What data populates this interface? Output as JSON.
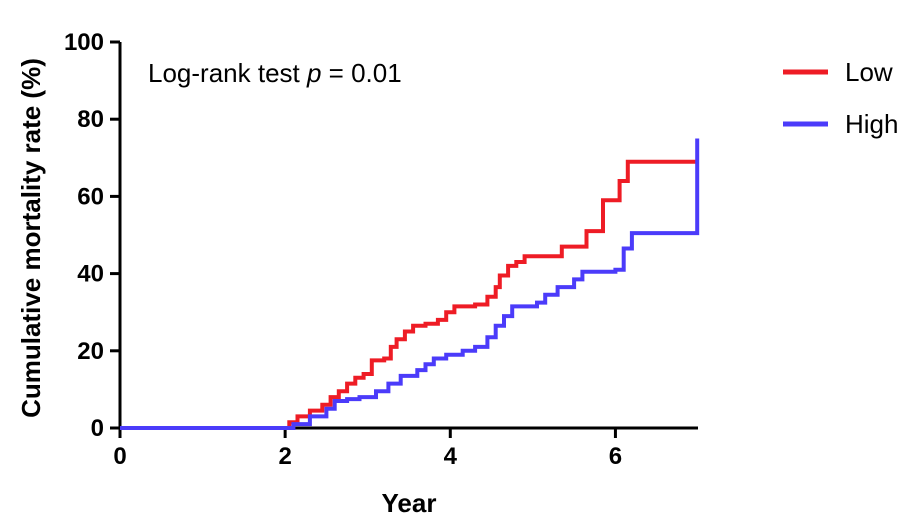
{
  "chart_data": {
    "type": "line",
    "title": "",
    "xlabel": "Year",
    "ylabel": "Cumulative mortality rate (%)",
    "xlim": [
      0,
      7
    ],
    "ylim": [
      0,
      100
    ],
    "xticks": [
      0,
      2,
      4,
      6
    ],
    "yticks": [
      0,
      20,
      40,
      60,
      80,
      100
    ],
    "grid": false,
    "legend_position": "top-right outside plot",
    "annotation": {
      "prefix": "Log-rank test ",
      "p_symbol": "p",
      "suffix": " = 0.01"
    },
    "series": [
      {
        "name": "Low",
        "color": "#ee1c25",
        "step": true,
        "points": [
          [
            0,
            0
          ],
          [
            2.0,
            0
          ],
          [
            2.05,
            1.5
          ],
          [
            2.15,
            3
          ],
          [
            2.3,
            4.5
          ],
          [
            2.45,
            6
          ],
          [
            2.55,
            8
          ],
          [
            2.65,
            9.5
          ],
          [
            2.75,
            11.5
          ],
          [
            2.85,
            13
          ],
          [
            2.95,
            14
          ],
          [
            3.05,
            17.5
          ],
          [
            3.2,
            18
          ],
          [
            3.28,
            21
          ],
          [
            3.35,
            23
          ],
          [
            3.45,
            25
          ],
          [
            3.55,
            26.5
          ],
          [
            3.7,
            27
          ],
          [
            3.85,
            28
          ],
          [
            3.95,
            30
          ],
          [
            4.05,
            31.5
          ],
          [
            4.3,
            32
          ],
          [
            4.45,
            34
          ],
          [
            4.55,
            36.5
          ],
          [
            4.6,
            39.5
          ],
          [
            4.7,
            42
          ],
          [
            4.8,
            43
          ],
          [
            4.9,
            44.5
          ],
          [
            5.35,
            47
          ],
          [
            5.65,
            51
          ],
          [
            5.85,
            59
          ],
          [
            6.05,
            64
          ],
          [
            6.15,
            69
          ],
          [
            7.0,
            69
          ]
        ]
      },
      {
        "name": "High",
        "color": "#4b3bfa",
        "step": true,
        "points": [
          [
            0,
            0
          ],
          [
            2.0,
            0
          ],
          [
            2.1,
            1
          ],
          [
            2.3,
            3
          ],
          [
            2.5,
            5
          ],
          [
            2.6,
            7
          ],
          [
            2.75,
            7.5
          ],
          [
            2.9,
            8
          ],
          [
            3.1,
            9.5
          ],
          [
            3.25,
            11.5
          ],
          [
            3.4,
            13.5
          ],
          [
            3.6,
            15
          ],
          [
            3.7,
            16.5
          ],
          [
            3.8,
            18
          ],
          [
            3.95,
            19
          ],
          [
            4.15,
            20
          ],
          [
            4.3,
            21
          ],
          [
            4.45,
            23.5
          ],
          [
            4.55,
            26.5
          ],
          [
            4.65,
            29
          ],
          [
            4.75,
            31.5
          ],
          [
            5.05,
            32.5
          ],
          [
            5.15,
            34.5
          ],
          [
            5.3,
            36.5
          ],
          [
            5.5,
            38.5
          ],
          [
            5.6,
            40.5
          ],
          [
            6.0,
            41
          ],
          [
            6.1,
            46.5
          ],
          [
            6.2,
            50.5
          ],
          [
            6.98,
            50.5
          ],
          [
            6.99,
            75
          ]
        ]
      }
    ]
  }
}
